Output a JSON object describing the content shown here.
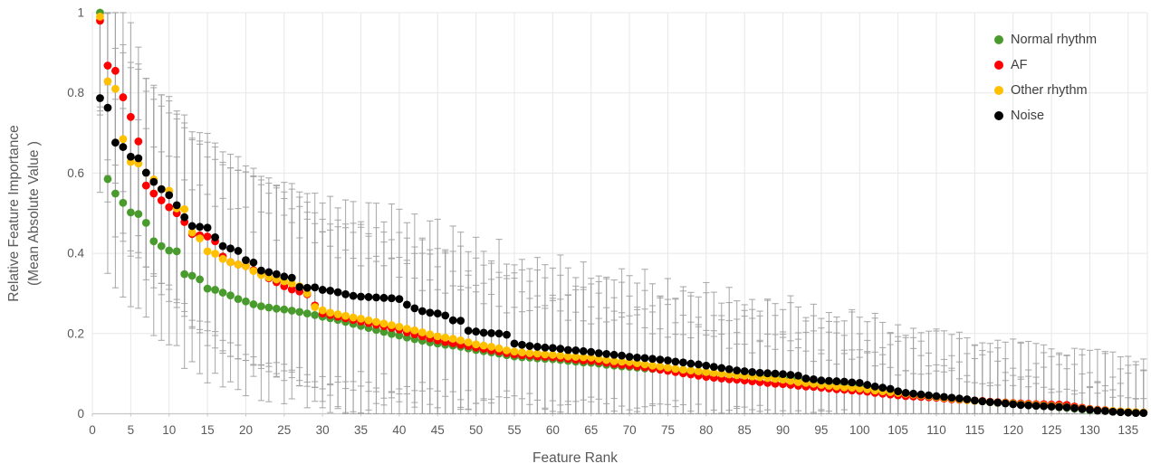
{
  "figure": {
    "description": "Scatter plot of relative feature importance (mean absolute value) vs feature rank with error bars, for four cardiac rhythm classes",
    "background": "#ffffff"
  },
  "axes": {
    "x": {
      "label": "Feature Rank",
      "min": 0,
      "max": 137.5,
      "ticks": [
        0,
        5,
        10,
        15,
        20,
        25,
        30,
        35,
        40,
        45,
        50,
        55,
        60,
        65,
        70,
        75,
        80,
        85,
        90,
        95,
        100,
        105,
        110,
        115,
        120,
        125,
        130,
        135
      ]
    },
    "y": {
      "label_line1": "Relative Feature Importance",
      "label_line2": "(Mean Absolute Value )",
      "min": 0,
      "max": 1,
      "ticks": [
        0,
        0.2,
        0.4,
        0.6,
        0.8,
        1
      ],
      "tick_labels": [
        "0",
        "0.2",
        "0.4",
        "0.6",
        "0.8",
        "1"
      ]
    }
  },
  "legend": {
    "items": [
      {
        "label": "Normal rhythm",
        "color": "#4A9B2E"
      },
      {
        "label": "AF",
        "color": "#FF0000"
      },
      {
        "label": "Other rhythm",
        "color": "#FFC000"
      },
      {
        "label": "Noise",
        "color": "#000000"
      }
    ]
  },
  "style": {
    "grid_color": "#E7E7E7",
    "axis_line_color": "#C6C6C6",
    "tick_text_color": "#595959",
    "error_bar_color": "#A0A0A0"
  },
  "chart_data": {
    "type": "scatter",
    "title": "",
    "xlabel": "Feature Rank",
    "ylabel": "Relative Feature Importance (Mean Absolute Value )",
    "xlim": [
      0,
      137.5
    ],
    "ylim": [
      0,
      1
    ],
    "grid": true,
    "legend_position": "top-right",
    "rank_start": 1,
    "rank_end": 137,
    "series": [
      {
        "name": "Normal rhythm",
        "color": "#4A9B2E",
        "values": [
          1.0,
          0.585,
          0.549,
          0.526,
          0.502,
          0.498,
          0.476,
          0.43,
          0.418,
          0.407,
          0.405,
          0.348,
          0.344,
          0.335,
          0.312,
          0.309,
          0.302,
          0.295,
          0.286,
          0.28,
          0.273,
          0.268,
          0.265,
          0.262,
          0.26,
          0.257,
          0.254,
          0.25,
          0.246,
          0.242,
          0.238,
          0.234,
          0.229,
          0.224,
          0.219,
          0.214,
          0.209,
          0.204,
          0.199,
          0.195,
          0.19,
          0.186,
          0.182,
          0.178,
          0.175,
          0.172,
          0.17,
          0.167,
          0.163,
          0.159,
          0.156,
          0.153,
          0.15,
          0.146,
          0.143,
          0.141,
          0.14,
          0.138,
          0.137,
          0.136,
          0.134,
          0.132,
          0.13,
          0.128,
          0.127,
          0.125,
          0.122,
          0.12,
          0.118,
          0.117,
          0.115,
          0.113,
          0.112,
          0.111,
          0.11,
          0.108,
          0.107,
          0.105,
          0.104,
          0.102,
          0.101,
          0.099,
          0.098,
          0.096,
          0.095,
          0.094,
          0.093,
          0.092,
          0.091,
          0.09,
          0.088,
          0.086,
          0.084,
          0.082,
          0.08,
          0.078,
          0.077,
          0.075,
          0.074,
          0.072,
          0.07,
          0.066,
          0.062,
          0.058,
          0.054,
          0.051,
          0.049,
          0.047,
          0.045,
          0.043,
          0.041,
          0.039,
          0.037,
          0.035,
          0.033,
          0.031,
          0.029,
          0.027,
          0.026,
          0.024,
          0.023,
          0.021,
          0.02,
          0.019,
          0.018,
          0.016,
          0.015,
          0.013,
          0.011,
          0.009,
          0.008,
          0.007,
          0.006,
          0.005,
          0.004,
          0.003,
          0.002
        ]
      },
      {
        "name": "AF",
        "color": "#FF0000",
        "values": [
          0.98,
          0.868,
          0.855,
          0.789,
          0.74,
          0.679,
          0.569,
          0.549,
          0.532,
          0.515,
          0.5,
          0.478,
          0.448,
          0.445,
          0.442,
          0.43,
          0.392,
          0.378,
          0.372,
          0.368,
          0.358,
          0.348,
          0.338,
          0.328,
          0.318,
          0.31,
          0.305,
          0.298,
          0.27,
          0.25,
          0.246,
          0.242,
          0.238,
          0.234,
          0.23,
          0.226,
          0.222,
          0.218,
          0.214,
          0.21,
          0.203,
          0.198,
          0.193,
          0.188,
          0.183,
          0.179,
          0.176,
          0.172,
          0.169,
          0.165,
          0.162,
          0.158,
          0.155,
          0.151,
          0.148,
          0.146,
          0.145,
          0.143,
          0.142,
          0.141,
          0.139,
          0.137,
          0.135,
          0.133,
          0.132,
          0.13,
          0.127,
          0.124,
          0.122,
          0.12,
          0.118,
          0.116,
          0.113,
          0.11,
          0.107,
          0.104,
          0.101,
          0.098,
          0.095,
          0.092,
          0.09,
          0.088,
          0.086,
          0.085,
          0.083,
          0.081,
          0.079,
          0.077,
          0.075,
          0.074,
          0.072,
          0.07,
          0.068,
          0.067,
          0.065,
          0.063,
          0.061,
          0.06,
          0.058,
          0.057,
          0.055,
          0.052,
          0.05,
          0.048,
          0.046,
          0.044,
          0.043,
          0.042,
          0.041,
          0.04,
          0.038,
          0.036,
          0.035,
          0.034,
          0.033,
          0.032,
          0.03,
          0.029,
          0.028,
          0.027,
          0.026,
          0.025,
          0.024,
          0.024,
          0.023,
          0.023,
          0.022,
          0.018,
          0.015,
          0.012,
          0.01,
          0.009,
          0.007,
          0.006,
          0.005,
          0.004,
          0.003
        ]
      },
      {
        "name": "Other rhythm",
        "color": "#FFC000",
        "values": [
          0.99,
          0.829,
          0.81,
          0.685,
          0.628,
          0.624,
          0.601,
          0.584,
          0.56,
          0.556,
          0.512,
          0.51,
          0.452,
          0.437,
          0.405,
          0.399,
          0.386,
          0.378,
          0.372,
          0.368,
          0.356,
          0.346,
          0.34,
          0.335,
          0.33,
          0.325,
          0.318,
          0.3,
          0.266,
          0.258,
          0.252,
          0.248,
          0.244,
          0.24,
          0.237,
          0.233,
          0.229,
          0.225,
          0.221,
          0.217,
          0.212,
          0.208,
          0.203,
          0.198,
          0.193,
          0.19,
          0.187,
          0.183,
          0.178,
          0.173,
          0.17,
          0.167,
          0.163,
          0.158,
          0.155,
          0.153,
          0.151,
          0.15,
          0.148,
          0.147,
          0.145,
          0.143,
          0.142,
          0.141,
          0.14,
          0.137,
          0.134,
          0.131,
          0.13,
          0.129,
          0.126,
          0.123,
          0.12,
          0.118,
          0.115,
          0.112,
          0.11,
          0.108,
          0.106,
          0.104,
          0.102,
          0.1,
          0.098,
          0.096,
          0.095,
          0.093,
          0.091,
          0.089,
          0.087,
          0.085,
          0.082,
          0.079,
          0.077,
          0.075,
          0.072,
          0.07,
          0.068,
          0.066,
          0.065,
          0.063,
          0.061,
          0.058,
          0.056,
          0.054,
          0.052,
          0.05,
          0.048,
          0.046,
          0.044,
          0.042,
          0.04,
          0.038,
          0.036,
          0.034,
          0.032,
          0.031,
          0.029,
          0.028,
          0.027,
          0.026,
          0.024,
          0.023,
          0.022,
          0.021,
          0.02,
          0.019,
          0.017,
          0.015,
          0.013,
          0.011,
          0.009,
          0.008,
          0.007,
          0.006,
          0.005,
          0.004,
          0.003
        ]
      },
      {
        "name": "Noise",
        "color": "#000000",
        "values": [
          0.787,
          0.763,
          0.676,
          0.665,
          0.641,
          0.637,
          0.601,
          0.578,
          0.56,
          0.545,
          0.52,
          0.49,
          0.468,
          0.466,
          0.464,
          0.44,
          0.418,
          0.412,
          0.406,
          0.383,
          0.377,
          0.357,
          0.353,
          0.348,
          0.342,
          0.339,
          0.316,
          0.314,
          0.315,
          0.309,
          0.307,
          0.303,
          0.298,
          0.294,
          0.292,
          0.291,
          0.29,
          0.289,
          0.288,
          0.286,
          0.272,
          0.263,
          0.256,
          0.252,
          0.25,
          0.245,
          0.233,
          0.232,
          0.207,
          0.205,
          0.202,
          0.201,
          0.2,
          0.197,
          0.175,
          0.172,
          0.169,
          0.167,
          0.165,
          0.164,
          0.162,
          0.159,
          0.158,
          0.156,
          0.154,
          0.151,
          0.149,
          0.147,
          0.145,
          0.142,
          0.14,
          0.139,
          0.137,
          0.135,
          0.133,
          0.13,
          0.128,
          0.125,
          0.123,
          0.12,
          0.117,
          0.114,
          0.111,
          0.108,
          0.106,
          0.104,
          0.102,
          0.101,
          0.1,
          0.099,
          0.097,
          0.095,
          0.088,
          0.086,
          0.083,
          0.082,
          0.081,
          0.08,
          0.078,
          0.077,
          0.072,
          0.068,
          0.065,
          0.062,
          0.056,
          0.052,
          0.05,
          0.048,
          0.046,
          0.044,
          0.042,
          0.04,
          0.038,
          0.036,
          0.033,
          0.031,
          0.029,
          0.028,
          0.026,
          0.024,
          0.022,
          0.021,
          0.02,
          0.019,
          0.018,
          0.017,
          0.016,
          0.014,
          0.012,
          0.01,
          0.008,
          0.007,
          0.005,
          0.004,
          0.003,
          0.002,
          0.002
        ]
      }
    ],
    "error_bars": {
      "visible": true,
      "color": "#A0A0A0",
      "std_model": {
        "base": 0.085,
        "slope": 0.55,
        "wobble_amp": 0.06,
        "min": 0.035,
        "max": 0.235
      },
      "clip": [
        0,
        1
      ]
    }
  }
}
